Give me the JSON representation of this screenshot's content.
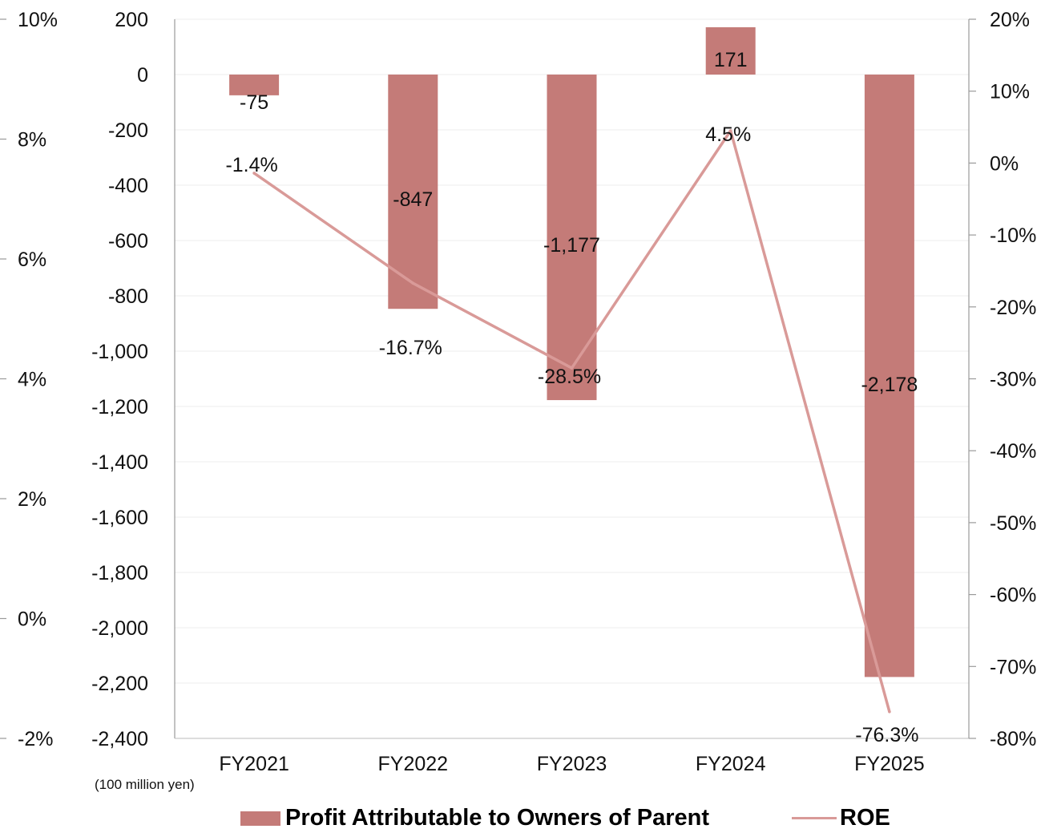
{
  "chart_data": {
    "type": "bar+line",
    "categories": [
      "FY2021",
      "FY2022",
      "FY2023",
      "FY2024",
      "FY2025"
    ],
    "series": [
      {
        "name": "Profit Attributable to Owners of Parent",
        "kind": "bar",
        "axis": "left",
        "values": [
          -75,
          -847,
          -1177,
          171,
          -2178
        ],
        "labels": [
          "-75",
          "-847",
          "-1,177",
          "171",
          "-2,178"
        ],
        "color": "#c47b78"
      },
      {
        "name": "ROE",
        "kind": "line",
        "axis": "right",
        "values": [
          -1.4,
          -16.7,
          -28.5,
          4.5,
          -76.3
        ],
        "labels": [
          "-1.4%",
          "-16.7%",
          "-28.5%",
          "4.5%",
          "-76.3%"
        ],
        "color": "#d99a98"
      }
    ],
    "left_axis": {
      "ylim": [
        -2400,
        200
      ],
      "ticks": [
        "200",
        "0",
        "-200",
        "-400",
        "-600",
        "-800",
        "-1,000",
        "-1,200",
        "-1,400",
        "-1,600",
        "-1,800",
        "-2,000",
        "-2,200",
        "-2,400"
      ],
      "unit": "(100 million yen)"
    },
    "right_axis": {
      "ylim": [
        -80,
        20
      ],
      "ticks": [
        "20%",
        "10%",
        "0%",
        "-10%",
        "-20%",
        "-30%",
        "-40%",
        "-50%",
        "-60%",
        "-70%",
        "-80%"
      ]
    },
    "outer_left_axis": {
      "ylim": [
        -2,
        10
      ],
      "ticks": [
        "10%",
        "8%",
        "6%",
        "4%",
        "2%",
        "0%",
        "-2%"
      ]
    },
    "grid": true,
    "legend_position": "bottom"
  }
}
